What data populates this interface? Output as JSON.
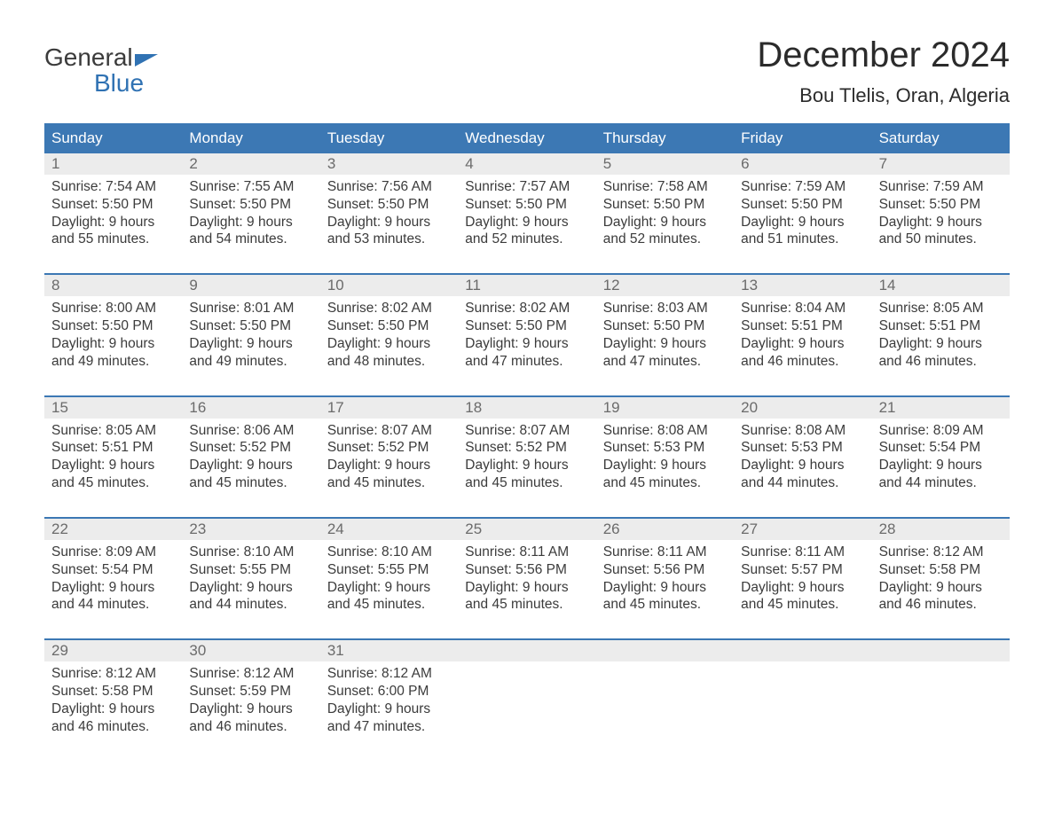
{
  "logo": {
    "line1": "General",
    "line2": "Blue"
  },
  "title": "December 2024",
  "location": "Bou Tlelis, Oran, Algeria",
  "colors": {
    "header_bg": "#3c78b4",
    "header_text": "#ffffff",
    "daynum_bg": "#ececec",
    "daynum_text": "#6b6b6b",
    "body_text": "#3b3b3b",
    "accent": "#3072b3",
    "page_bg": "#ffffff",
    "week_border": "#3c78b4"
  },
  "layout": {
    "columns": 7,
    "rows": 5,
    "month_title_fontsize": 40,
    "location_fontsize": 22,
    "weekday_fontsize": 17,
    "daynum_fontsize": 17,
    "cell_fontsize": 15.5
  },
  "weekdays": [
    "Sunday",
    "Monday",
    "Tuesday",
    "Wednesday",
    "Thursday",
    "Friday",
    "Saturday"
  ],
  "weeks": [
    [
      {
        "n": "1",
        "sr": "Sunrise: 7:54 AM",
        "ss": "Sunset: 5:50 PM",
        "d1": "Daylight: 9 hours",
        "d2": "and 55 minutes."
      },
      {
        "n": "2",
        "sr": "Sunrise: 7:55 AM",
        "ss": "Sunset: 5:50 PM",
        "d1": "Daylight: 9 hours",
        "d2": "and 54 minutes."
      },
      {
        "n": "3",
        "sr": "Sunrise: 7:56 AM",
        "ss": "Sunset: 5:50 PM",
        "d1": "Daylight: 9 hours",
        "d2": "and 53 minutes."
      },
      {
        "n": "4",
        "sr": "Sunrise: 7:57 AM",
        "ss": "Sunset: 5:50 PM",
        "d1": "Daylight: 9 hours",
        "d2": "and 52 minutes."
      },
      {
        "n": "5",
        "sr": "Sunrise: 7:58 AM",
        "ss": "Sunset: 5:50 PM",
        "d1": "Daylight: 9 hours",
        "d2": "and 52 minutes."
      },
      {
        "n": "6",
        "sr": "Sunrise: 7:59 AM",
        "ss": "Sunset: 5:50 PM",
        "d1": "Daylight: 9 hours",
        "d2": "and 51 minutes."
      },
      {
        "n": "7",
        "sr": "Sunrise: 7:59 AM",
        "ss": "Sunset: 5:50 PM",
        "d1": "Daylight: 9 hours",
        "d2": "and 50 minutes."
      }
    ],
    [
      {
        "n": "8",
        "sr": "Sunrise: 8:00 AM",
        "ss": "Sunset: 5:50 PM",
        "d1": "Daylight: 9 hours",
        "d2": "and 49 minutes."
      },
      {
        "n": "9",
        "sr": "Sunrise: 8:01 AM",
        "ss": "Sunset: 5:50 PM",
        "d1": "Daylight: 9 hours",
        "d2": "and 49 minutes."
      },
      {
        "n": "10",
        "sr": "Sunrise: 8:02 AM",
        "ss": "Sunset: 5:50 PM",
        "d1": "Daylight: 9 hours",
        "d2": "and 48 minutes."
      },
      {
        "n": "11",
        "sr": "Sunrise: 8:02 AM",
        "ss": "Sunset: 5:50 PM",
        "d1": "Daylight: 9 hours",
        "d2": "and 47 minutes."
      },
      {
        "n": "12",
        "sr": "Sunrise: 8:03 AM",
        "ss": "Sunset: 5:50 PM",
        "d1": "Daylight: 9 hours",
        "d2": "and 47 minutes."
      },
      {
        "n": "13",
        "sr": "Sunrise: 8:04 AM",
        "ss": "Sunset: 5:51 PM",
        "d1": "Daylight: 9 hours",
        "d2": "and 46 minutes."
      },
      {
        "n": "14",
        "sr": "Sunrise: 8:05 AM",
        "ss": "Sunset: 5:51 PM",
        "d1": "Daylight: 9 hours",
        "d2": "and 46 minutes."
      }
    ],
    [
      {
        "n": "15",
        "sr": "Sunrise: 8:05 AM",
        "ss": "Sunset: 5:51 PM",
        "d1": "Daylight: 9 hours",
        "d2": "and 45 minutes."
      },
      {
        "n": "16",
        "sr": "Sunrise: 8:06 AM",
        "ss": "Sunset: 5:52 PM",
        "d1": "Daylight: 9 hours",
        "d2": "and 45 minutes."
      },
      {
        "n": "17",
        "sr": "Sunrise: 8:07 AM",
        "ss": "Sunset: 5:52 PM",
        "d1": "Daylight: 9 hours",
        "d2": "and 45 minutes."
      },
      {
        "n": "18",
        "sr": "Sunrise: 8:07 AM",
        "ss": "Sunset: 5:52 PM",
        "d1": "Daylight: 9 hours",
        "d2": "and 45 minutes."
      },
      {
        "n": "19",
        "sr": "Sunrise: 8:08 AM",
        "ss": "Sunset: 5:53 PM",
        "d1": "Daylight: 9 hours",
        "d2": "and 45 minutes."
      },
      {
        "n": "20",
        "sr": "Sunrise: 8:08 AM",
        "ss": "Sunset: 5:53 PM",
        "d1": "Daylight: 9 hours",
        "d2": "and 44 minutes."
      },
      {
        "n": "21",
        "sr": "Sunrise: 8:09 AM",
        "ss": "Sunset: 5:54 PM",
        "d1": "Daylight: 9 hours",
        "d2": "and 44 minutes."
      }
    ],
    [
      {
        "n": "22",
        "sr": "Sunrise: 8:09 AM",
        "ss": "Sunset: 5:54 PM",
        "d1": "Daylight: 9 hours",
        "d2": "and 44 minutes."
      },
      {
        "n": "23",
        "sr": "Sunrise: 8:10 AM",
        "ss": "Sunset: 5:55 PM",
        "d1": "Daylight: 9 hours",
        "d2": "and 44 minutes."
      },
      {
        "n": "24",
        "sr": "Sunrise: 8:10 AM",
        "ss": "Sunset: 5:55 PM",
        "d1": "Daylight: 9 hours",
        "d2": "and 45 minutes."
      },
      {
        "n": "25",
        "sr": "Sunrise: 8:11 AM",
        "ss": "Sunset: 5:56 PM",
        "d1": "Daylight: 9 hours",
        "d2": "and 45 minutes."
      },
      {
        "n": "26",
        "sr": "Sunrise: 8:11 AM",
        "ss": "Sunset: 5:56 PM",
        "d1": "Daylight: 9 hours",
        "d2": "and 45 minutes."
      },
      {
        "n": "27",
        "sr": "Sunrise: 8:11 AM",
        "ss": "Sunset: 5:57 PM",
        "d1": "Daylight: 9 hours",
        "d2": "and 45 minutes."
      },
      {
        "n": "28",
        "sr": "Sunrise: 8:12 AM",
        "ss": "Sunset: 5:58 PM",
        "d1": "Daylight: 9 hours",
        "d2": "and 46 minutes."
      }
    ],
    [
      {
        "n": "29",
        "sr": "Sunrise: 8:12 AM",
        "ss": "Sunset: 5:58 PM",
        "d1": "Daylight: 9 hours",
        "d2": "and 46 minutes."
      },
      {
        "n": "30",
        "sr": "Sunrise: 8:12 AM",
        "ss": "Sunset: 5:59 PM",
        "d1": "Daylight: 9 hours",
        "d2": "and 46 minutes."
      },
      {
        "n": "31",
        "sr": "Sunrise: 8:12 AM",
        "ss": "Sunset: 6:00 PM",
        "d1": "Daylight: 9 hours",
        "d2": "and 47 minutes."
      },
      null,
      null,
      null,
      null
    ]
  ]
}
